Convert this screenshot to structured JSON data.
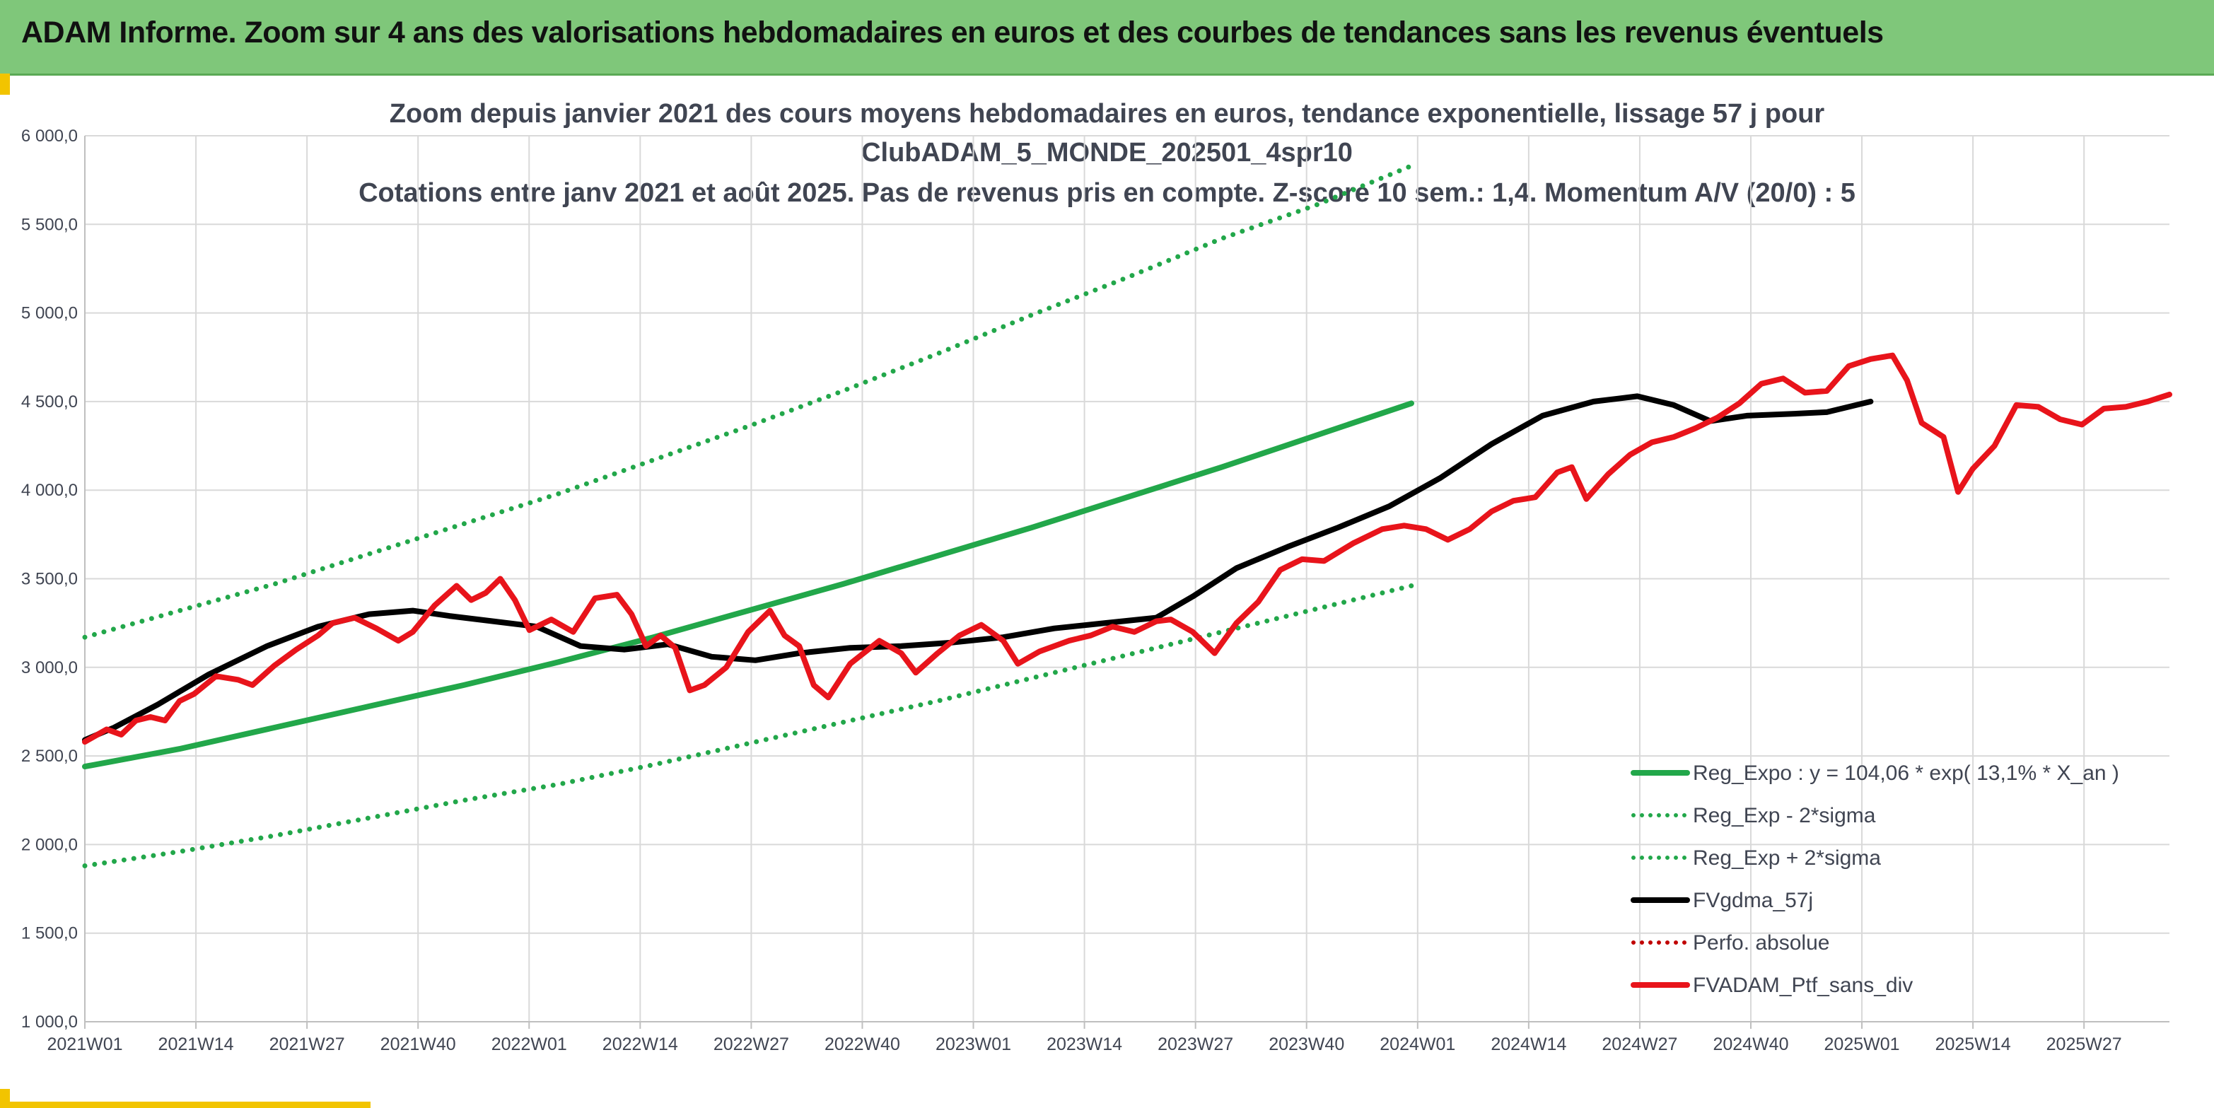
{
  "banner": {
    "title": "ADAM Informe. Zoom sur 4 ans des valorisations hebdomadaires en euros et des courbes de tendances sans les revenus éventuels"
  },
  "chart_data": {
    "type": "line",
    "title_lines": [
      "Zoom depuis janvier 2021 des cours moyens hebdomadaires en euros, tendance exponentielle, lissage 57 j pour",
      "ClubADAM_5_MONDE_202501_4spr10",
      "Cotations entre janv 2021 et août 2025. Pas de revenus pris en compte. Z-score 10 sem.: 1,4. Momentum A/V (20/0) : 5"
    ],
    "xlabel": "",
    "ylabel": "",
    "ylim": [
      1000,
      6000
    ],
    "y_ticks": [
      "1 000,0",
      "1 500,0",
      "2 000,0",
      "2 500,0",
      "3 000,0",
      "3 500,0",
      "4 000,0",
      "4 500,0",
      "5 000,0",
      "5 500,0",
      "6 000,0"
    ],
    "x_ticks": [
      "2021W01",
      "2021W14",
      "2021W27",
      "2021W40",
      "2022W01",
      "2022W14",
      "2022W27",
      "2022W40",
      "2023W01",
      "2023W14",
      "2023W27",
      "2023W40",
      "2024W01",
      "2024W14",
      "2024W27",
      "2024W40",
      "2025W01",
      "2025W14",
      "2025W27"
    ],
    "weeks_total": 244,
    "grid": true,
    "legend_position": "bottom-right",
    "colors": {
      "green": "#22a74a",
      "black": "#000000",
      "red": "#e8141b",
      "dotted_red": "#c00000",
      "grid": "#d9d9d9",
      "axis_text": "#404552"
    },
    "series": [
      {
        "name": "Reg_Expo : y = 104,06 * exp( 13,1% *  X_an )",
        "style": "solid",
        "color": "#22a74a",
        "points": [
          [
            0,
            2440
          ],
          [
            26,
            2540
          ],
          [
            52,
            2660
          ],
          [
            78,
            2780
          ],
          [
            104,
            2900
          ],
          [
            130,
            3030
          ],
          [
            156,
            3170
          ],
          [
            182,
            3320
          ],
          [
            208,
            3470
          ],
          [
            234,
            3630
          ],
          [
            260,
            3790
          ],
          [
            286,
            3960
          ],
          [
            312,
            4130
          ],
          [
            338,
            4310
          ],
          [
            364,
            4490
          ]
        ]
      },
      {
        "name": "Reg_Exp - 2*sigma",
        "style": "dotted",
        "color": "#22a74a",
        "points": [
          [
            0,
            1880
          ],
          [
            26,
            1960
          ],
          [
            52,
            2050
          ],
          [
            78,
            2150
          ],
          [
            104,
            2250
          ],
          [
            130,
            2340
          ],
          [
            156,
            2450
          ],
          [
            182,
            2570
          ],
          [
            208,
            2690
          ],
          [
            234,
            2810
          ],
          [
            260,
            2940
          ],
          [
            286,
            3070
          ],
          [
            312,
            3200
          ],
          [
            338,
            3330
          ],
          [
            364,
            3460
          ]
        ]
      },
      {
        "name": "Reg_Exp + 2*sigma",
        "style": "dotted",
        "color": "#22a74a",
        "points": [
          [
            0,
            3170
          ],
          [
            26,
            3320
          ],
          [
            52,
            3470
          ],
          [
            78,
            3640
          ],
          [
            104,
            3810
          ],
          [
            130,
            3980
          ],
          [
            156,
            4170
          ],
          [
            182,
            4360
          ],
          [
            208,
            4560
          ],
          [
            234,
            4770
          ],
          [
            260,
            4990
          ],
          [
            286,
            5200
          ],
          [
            312,
            5420
          ],
          [
            338,
            5610
          ],
          [
            364,
            5830
          ]
        ]
      },
      {
        "name": "FVgdma_57j",
        "style": "solid",
        "color": "#000000",
        "points": [
          [
            0,
            2590
          ],
          [
            8,
            2660
          ],
          [
            20,
            2790
          ],
          [
            34,
            2960
          ],
          [
            50,
            3120
          ],
          [
            64,
            3230
          ],
          [
            78,
            3300
          ],
          [
            90,
            3320
          ],
          [
            100,
            3290
          ],
          [
            112,
            3260
          ],
          [
            124,
            3230
          ],
          [
            136,
            3120
          ],
          [
            148,
            3100
          ],
          [
            160,
            3130
          ],
          [
            172,
            3060
          ],
          [
            184,
            3040
          ],
          [
            196,
            3080
          ],
          [
            210,
            3110
          ],
          [
            224,
            3120
          ],
          [
            238,
            3140
          ],
          [
            252,
            3170
          ],
          [
            266,
            3220
          ],
          [
            280,
            3250
          ],
          [
            294,
            3280
          ],
          [
            304,
            3400
          ],
          [
            316,
            3560
          ],
          [
            330,
            3680
          ],
          [
            344,
            3790
          ],
          [
            358,
            3910
          ],
          [
            372,
            4070
          ],
          [
            386,
            4260
          ],
          [
            400,
            4420
          ],
          [
            414,
            4500
          ],
          [
            426,
            4530
          ],
          [
            436,
            4480
          ],
          [
            446,
            4390
          ],
          [
            456,
            4420
          ],
          [
            468,
            4430
          ],
          [
            478,
            4440
          ],
          [
            490,
            4500
          ]
        ]
      },
      {
        "name": "Perfo. absolue",
        "style": "dotted",
        "color": "#c00000",
        "points": []
      },
      {
        "name": "FVADAM_Ptf_sans_div",
        "style": "solid",
        "color": "#e8141b",
        "points": [
          [
            0,
            2580
          ],
          [
            6,
            2650
          ],
          [
            10,
            2620
          ],
          [
            14,
            2700
          ],
          [
            18,
            2720
          ],
          [
            22,
            2700
          ],
          [
            26,
            2810
          ],
          [
            30,
            2850
          ],
          [
            36,
            2950
          ],
          [
            42,
            2930
          ],
          [
            46,
            2900
          ],
          [
            52,
            3010
          ],
          [
            58,
            3100
          ],
          [
            64,
            3180
          ],
          [
            68,
            3250
          ],
          [
            74,
            3280
          ],
          [
            80,
            3220
          ],
          [
            86,
            3150
          ],
          [
            90,
            3200
          ],
          [
            96,
            3350
          ],
          [
            102,
            3460
          ],
          [
            106,
            3380
          ],
          [
            110,
            3420
          ],
          [
            114,
            3500
          ],
          [
            118,
            3380
          ],
          [
            122,
            3210
          ],
          [
            128,
            3270
          ],
          [
            134,
            3200
          ],
          [
            140,
            3390
          ],
          [
            146,
            3410
          ],
          [
            150,
            3300
          ],
          [
            154,
            3120
          ],
          [
            158,
            3180
          ],
          [
            162,
            3110
          ],
          [
            166,
            2870
          ],
          [
            170,
            2900
          ],
          [
            176,
            3000
          ],
          [
            182,
            3200
          ],
          [
            188,
            3320
          ],
          [
            192,
            3180
          ],
          [
            196,
            3120
          ],
          [
            200,
            2900
          ],
          [
            204,
            2830
          ],
          [
            210,
            3020
          ],
          [
            218,
            3150
          ],
          [
            224,
            3080
          ],
          [
            228,
            2970
          ],
          [
            234,
            3080
          ],
          [
            240,
            3180
          ],
          [
            246,
            3240
          ],
          [
            252,
            3150
          ],
          [
            256,
            3020
          ],
          [
            262,
            3090
          ],
          [
            270,
            3150
          ],
          [
            276,
            3180
          ],
          [
            282,
            3230
          ],
          [
            288,
            3200
          ],
          [
            294,
            3260
          ],
          [
            298,
            3270
          ],
          [
            304,
            3200
          ],
          [
            310,
            3080
          ],
          [
            316,
            3250
          ],
          [
            322,
            3370
          ],
          [
            328,
            3550
          ],
          [
            334,
            3610
          ],
          [
            340,
            3600
          ],
          [
            348,
            3700
          ],
          [
            356,
            3780
          ],
          [
            362,
            3800
          ],
          [
            368,
            3780
          ],
          [
            374,
            3720
          ],
          [
            380,
            3780
          ],
          [
            386,
            3880
          ],
          [
            392,
            3940
          ],
          [
            398,
            3960
          ],
          [
            404,
            4100
          ],
          [
            408,
            4130
          ],
          [
            412,
            3950
          ],
          [
            418,
            4090
          ],
          [
            424,
            4200
          ],
          [
            430,
            4270
          ],
          [
            436,
            4300
          ],
          [
            442,
            4350
          ],
          [
            448,
            4410
          ],
          [
            454,
            4490
          ],
          [
            460,
            4600
          ],
          [
            466,
            4630
          ],
          [
            472,
            4550
          ],
          [
            478,
            4560
          ],
          [
            484,
            4700
          ],
          [
            490,
            4740
          ],
          [
            496,
            4760
          ],
          [
            500,
            4620
          ],
          [
            504,
            4380
          ],
          [
            510,
            4300
          ],
          [
            514,
            3990
          ],
          [
            518,
            4120
          ],
          [
            524,
            4250
          ],
          [
            530,
            4480
          ],
          [
            536,
            4470
          ],
          [
            542,
            4400
          ],
          [
            548,
            4370
          ],
          [
            554,
            4460
          ],
          [
            560,
            4470
          ],
          [
            566,
            4500
          ],
          [
            572,
            4540
          ]
        ]
      }
    ]
  }
}
